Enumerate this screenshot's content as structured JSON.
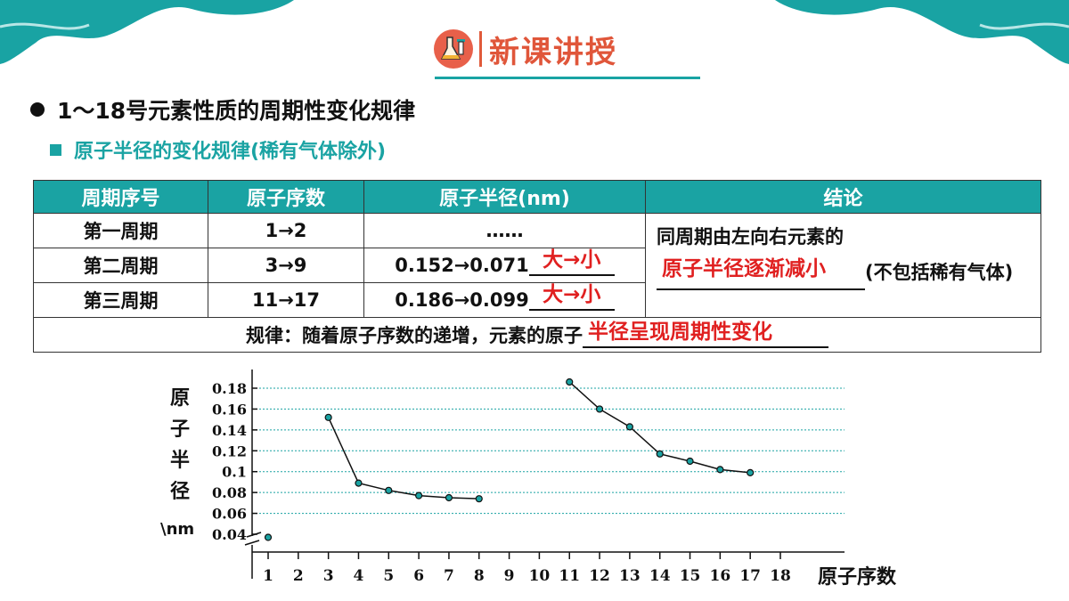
{
  "header": {
    "title": "新课讲授"
  },
  "bullets": {
    "main": "1～18号元素性质的周期性变化规律",
    "sub": "原子半径的变化规律(稀有气体除外)"
  },
  "table": {
    "headers": [
      "周期序号",
      "原子序数",
      "原子半径(nm)",
      "结论"
    ],
    "rows": [
      {
        "period": "第一周期",
        "numbers": "1→2",
        "radius": "……",
        "answer": ""
      },
      {
        "period": "第二周期",
        "numbers": "3→9",
        "radius": "0.152→0.071",
        "answer": "大→小"
      },
      {
        "period": "第三周期",
        "numbers": "11→17",
        "radius": "0.186→0.099",
        "answer": "大→小"
      }
    ],
    "conclusion": {
      "pre": "同周期由左向右元素的",
      "answer": "原子半径逐渐减小",
      "post": "(不包括稀有气体)"
    },
    "rule": {
      "text": "规律：随着原子序数的递增，元素的原子",
      "answer": "半径呈现周期性变化"
    }
  },
  "chart_data": {
    "type": "line",
    "ylabel": "原子半径\\nm",
    "xlabel": "原子序数",
    "x_ticks": [
      "1",
      "2",
      "3",
      "4",
      "5",
      "6",
      "7",
      "8",
      "9",
      "10",
      "11",
      "12",
      "13",
      "14",
      "15",
      "16",
      "17",
      "18"
    ],
    "y_ticks": [
      "0.04",
      "0.06",
      "0.08",
      "0.1",
      "0.12",
      "0.14",
      "0.16",
      "0.18"
    ],
    "ylim": [
      0.04,
      0.19
    ],
    "grid": true,
    "y_axis_break": true,
    "series": [
      {
        "points": [
          [
            1,
            0.037
          ]
        ]
      },
      {
        "points": [
          [
            3,
            0.152
          ],
          [
            4,
            0.089
          ],
          [
            5,
            0.082
          ],
          [
            6,
            0.077
          ],
          [
            7,
            0.075
          ],
          [
            8,
            0.074
          ]
        ]
      },
      {
        "points": [
          [
            11,
            0.186
          ],
          [
            12,
            0.16
          ],
          [
            13,
            0.143
          ],
          [
            14,
            0.117
          ],
          [
            15,
            0.11
          ],
          [
            16,
            0.102
          ],
          [
            17,
            0.099
          ]
        ]
      }
    ],
    "colors": {
      "point_fill": "#1aa3a3",
      "line": "#111111",
      "grid": "#1aa3a3"
    }
  }
}
